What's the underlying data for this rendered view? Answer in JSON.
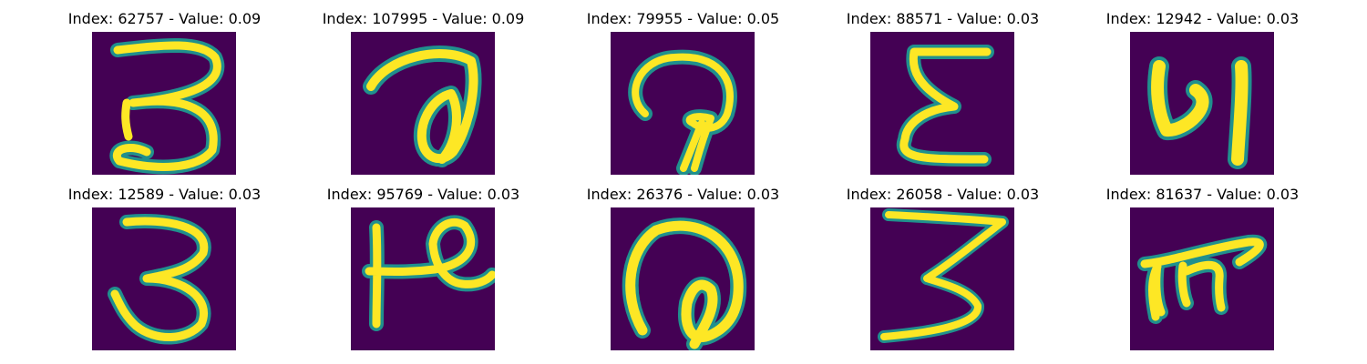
{
  "colors": {
    "background": "#440154",
    "stroke_outer": "#20908d",
    "stroke_inner": "#fde725"
  },
  "panels": [
    {
      "title": "Index: 62757 - Value: 0.09",
      "glyph": "devanagari-digit-3-like"
    },
    {
      "title": "Index: 107995 - Value: 0.09",
      "glyph": "loop-hook-stroke"
    },
    {
      "title": "Index: 79955 - Value: 0.05",
      "glyph": "curled-arc-stroke"
    },
    {
      "title": "Index: 88571 - Value: 0.03",
      "glyph": "epsilon-like-stroke"
    },
    {
      "title": "Index: 12942 - Value: 0.03",
      "glyph": "ya-like-stroke"
    },
    {
      "title": "Index: 12589 - Value: 0.03",
      "glyph": "devanagari-digit-3-like"
    },
    {
      "title": "Index: 95769 - Value: 0.03",
      "glyph": "p-like-stroke"
    },
    {
      "title": "Index: 26376 - Value: 0.03",
      "glyph": "at-like-loop"
    },
    {
      "title": "Index: 26058 - Value: 0.03",
      "glyph": "z-three-like-stroke"
    },
    {
      "title": "Index: 81637 - Value: 0.03",
      "glyph": "ma-like-stroke"
    }
  ]
}
